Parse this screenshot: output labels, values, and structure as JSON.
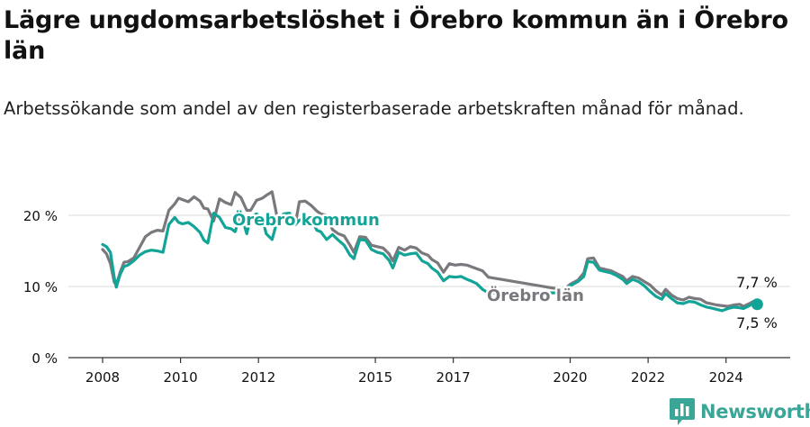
{
  "title": "Lägre ungdomsarbetslöshet i Örebro kommun än i Örebro län",
  "subtitle": "Arbetssökande som andel av den registerbaserade arbetskraften månad för månad.",
  "brand": {
    "name": "Newsworthy",
    "icon": "newsworthy-logo-icon"
  },
  "colors": {
    "orebro_kommun": "#12a597",
    "orebro_lan": "#7a787d",
    "gridline": "#d9d9d9",
    "axis": "#333333"
  },
  "chart_data": {
    "type": "line",
    "x_unit": "year",
    "xlim": [
      2008,
      2025
    ],
    "ylim": [
      0,
      20
    ],
    "y_ticks": [
      0,
      10,
      20
    ],
    "y_tick_labels": [
      "0 %",
      "10 %",
      "20 %"
    ],
    "x_ticks": [
      2008,
      2010,
      2012,
      2015,
      2017,
      2020,
      2022,
      2024
    ],
    "x_tick_labels": [
      "2008",
      "2010",
      "2012",
      "2015",
      "2017",
      "2020",
      "2022",
      "2024"
    ],
    "grid": "horizontal",
    "series": [
      {
        "name": "Örebro län",
        "color_key": "orebro_lan",
        "x": [
          2008.0,
          2008.1,
          2008.2,
          2008.3,
          2008.35,
          2008.45,
          2008.55,
          2008.65,
          2008.8,
          2008.95,
          2009.1,
          2009.25,
          2009.4,
          2009.55,
          2009.7,
          2009.85,
          2009.95,
          2010.05,
          2010.2,
          2010.35,
          2010.5,
          2010.6,
          2010.7,
          2010.85,
          2011.0,
          2011.15,
          2011.3,
          2011.4,
          2011.55,
          2011.7,
          2011.8,
          2011.95,
          2012.1,
          2012.2,
          2012.35,
          2012.5,
          2012.65,
          2012.8,
          2012.95,
          2013.05,
          2013.2,
          2013.35,
          2013.5,
          2013.6,
          2013.75,
          2013.9,
          2014.05,
          2014.2,
          2014.35,
          2014.45,
          2014.6,
          2014.75,
          2014.9,
          2015.05,
          2015.2,
          2015.35,
          2015.45,
          2015.6,
          2015.75,
          2015.9,
          2016.05,
          2016.2,
          2016.35,
          2016.45,
          2016.6,
          2016.75,
          2016.9,
          2017.05,
          2017.2,
          2017.35,
          2017.45,
          2017.6,
          2017.75,
          2017.9,
          2019.75,
          2019.85,
          2020.0,
          2020.2,
          2020.35,
          2020.45,
          2020.6,
          2020.75,
          2020.9,
          2021.05,
          2021.2,
          2021.35,
          2021.45,
          2021.6,
          2021.75,
          2021.9,
          2022.05,
          2022.2,
          2022.35,
          2022.45,
          2022.6,
          2022.75,
          2022.9,
          2023.05,
          2023.2,
          2023.35,
          2023.5,
          2023.6,
          2023.75,
          2023.9,
          2024.05,
          2024.2,
          2024.35,
          2024.45,
          2024.6,
          2024.7,
          2024.8
        ],
        "y": [
          15.2,
          14.6,
          13.2,
          10.6,
          10.2,
          12.0,
          13.4,
          13.5,
          14.0,
          15.5,
          17.0,
          17.6,
          17.9,
          17.8,
          20.7,
          21.6,
          22.4,
          22.2,
          21.9,
          22.6,
          22.0,
          21.0,
          20.9,
          19.2,
          22.3,
          21.8,
          21.5,
          23.2,
          22.5,
          20.7,
          20.7,
          22.1,
          22.4,
          22.8,
          23.3,
          19.2,
          19.8,
          19.7,
          18.9,
          21.9,
          22.0,
          21.4,
          20.6,
          20.2,
          20.0,
          18.0,
          17.4,
          17.1,
          15.8,
          14.8,
          17.0,
          16.9,
          15.8,
          15.6,
          15.4,
          14.6,
          13.6,
          15.5,
          15.1,
          15.6,
          15.4,
          14.7,
          14.4,
          13.8,
          13.3,
          12.0,
          13.2,
          13.0,
          13.1,
          13.0,
          12.8,
          12.5,
          12.2,
          11.3,
          9.6,
          9.6,
          10.3,
          10.9,
          11.9,
          13.9,
          14.0,
          12.6,
          12.4,
          12.2,
          11.8,
          11.4,
          10.8,
          11.4,
          11.2,
          10.7,
          10.2,
          9.4,
          8.8,
          9.6,
          8.8,
          8.3,
          8.1,
          8.5,
          8.3,
          8.2,
          7.7,
          7.6,
          7.4,
          7.3,
          7.2,
          7.4,
          7.5,
          7.2,
          7.6,
          7.9,
          7.7
        ]
      },
      {
        "name": "Örebro kommun",
        "color_key": "orebro_kommun",
        "x": [
          2008.0,
          2008.1,
          2008.2,
          2008.3,
          2008.35,
          2008.45,
          2008.55,
          2008.65,
          2008.8,
          2008.95,
          2009.1,
          2009.25,
          2009.4,
          2009.55,
          2009.7,
          2009.85,
          2009.95,
          2010.05,
          2010.2,
          2010.35,
          2010.5,
          2010.6,
          2010.7,
          2010.85,
          2011.0,
          2011.15,
          2011.3,
          2011.4,
          2011.55,
          2011.7,
          2011.8,
          2011.95,
          2012.1,
          2012.2,
          2012.35,
          2012.5,
          2012.65,
          2012.8,
          2012.95,
          2013.05,
          2013.2,
          2013.35,
          2013.5,
          2013.6,
          2013.75,
          2013.9,
          2014.05,
          2014.2,
          2014.35,
          2014.45,
          2014.6,
          2014.75,
          2014.9,
          2015.05,
          2015.2,
          2015.35,
          2015.45,
          2015.6,
          2015.75,
          2015.9,
          2016.05,
          2016.2,
          2016.35,
          2016.45,
          2016.6,
          2016.75,
          2016.9,
          2017.05,
          2017.2,
          2017.35,
          2017.45,
          2017.6,
          2017.75,
          2017.9,
          2019.75,
          2019.85,
          2020.0,
          2020.2,
          2020.35,
          2020.45,
          2020.6,
          2020.75,
          2020.9,
          2021.05,
          2021.2,
          2021.35,
          2021.45,
          2021.6,
          2021.75,
          2021.9,
          2022.05,
          2022.2,
          2022.35,
          2022.45,
          2022.6,
          2022.75,
          2022.9,
          2023.05,
          2023.2,
          2023.35,
          2023.5,
          2023.6,
          2023.75,
          2023.9,
          2024.05,
          2024.2,
          2024.35,
          2024.45,
          2024.6,
          2024.7,
          2024.8
        ],
        "y": [
          15.9,
          15.6,
          14.8,
          11.2,
          9.9,
          11.7,
          12.8,
          13.0,
          13.6,
          14.4,
          14.9,
          15.1,
          15.0,
          14.8,
          18.7,
          19.7,
          19.0,
          18.8,
          19.0,
          18.4,
          17.6,
          16.5,
          16.1,
          20.3,
          19.7,
          18.3,
          18.1,
          17.7,
          20.1,
          17.4,
          19.8,
          20.2,
          19.6,
          17.4,
          16.6,
          19.6,
          20.2,
          20.3,
          18.7,
          19.3,
          19.6,
          19.4,
          17.9,
          17.7,
          16.6,
          17.3,
          16.5,
          15.8,
          14.4,
          13.9,
          16.6,
          16.5,
          15.2,
          14.8,
          14.6,
          13.7,
          12.6,
          14.8,
          14.4,
          14.6,
          14.7,
          13.6,
          13.2,
          12.6,
          12.0,
          10.8,
          11.4,
          11.3,
          11.4,
          11.0,
          10.8,
          10.4,
          9.6,
          9.1,
          9.1,
          9.2,
          10.1,
          10.7,
          11.4,
          13.5,
          13.4,
          12.3,
          12.1,
          11.9,
          11.5,
          11.0,
          10.4,
          11.0,
          10.7,
          10.1,
          9.3,
          8.6,
          8.2,
          9.0,
          8.3,
          7.7,
          7.6,
          7.9,
          7.8,
          7.4,
          7.1,
          7.0,
          6.8,
          6.6,
          6.9,
          7.1,
          7.0,
          6.9,
          7.3,
          7.7,
          7.5
        ]
      }
    ],
    "series_labels": [
      "Örebro kommun",
      "Örebro län"
    ],
    "end_labels": {
      "orebro_lan": "7,7 %",
      "orebro_kommun": "7,5 %"
    }
  }
}
